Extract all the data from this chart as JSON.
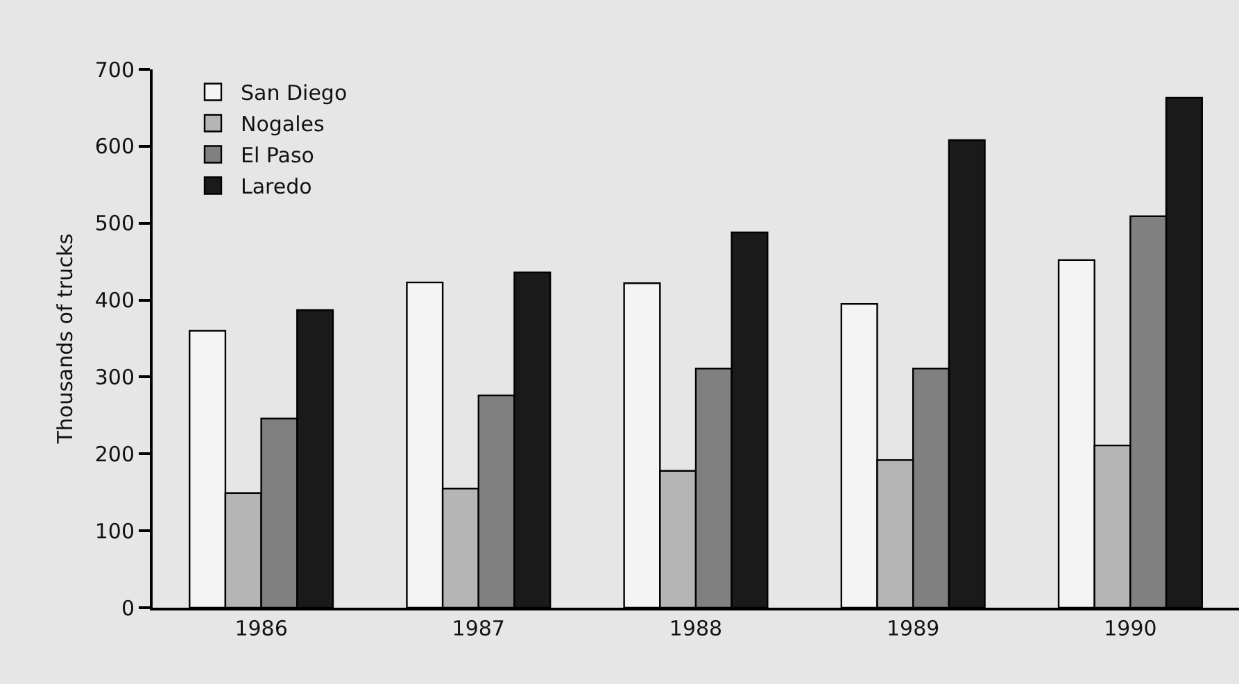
{
  "chart_data": {
    "type": "bar",
    "ylabel": "Thousands of trucks",
    "categories": [
      "1986",
      "1987",
      "1988",
      "1989",
      "1990"
    ],
    "series": [
      {
        "name": "San Diego",
        "color": "#f4f4f4",
        "values": [
          360,
          423,
          422,
          395,
          452
        ]
      },
      {
        "name": "Nogales",
        "color": "#b5b5b5",
        "values": [
          149,
          155,
          178,
          192,
          211
        ]
      },
      {
        "name": "El Paso",
        "color": "#808080",
        "values": [
          246,
          276,
          311,
          311,
          509
        ]
      },
      {
        "name": "Laredo",
        "color": "#1a1a1a",
        "values": [
          387,
          436,
          488,
          608,
          663
        ]
      }
    ],
    "ylim": [
      0,
      700
    ],
    "yticks": [
      0,
      100,
      200,
      300,
      400,
      500,
      600,
      700
    ],
    "grid": false,
    "legend": "top left"
  }
}
